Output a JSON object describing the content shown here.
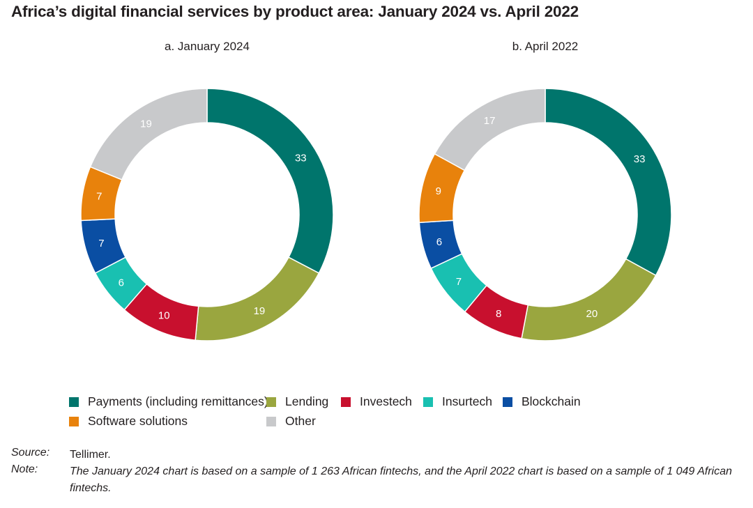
{
  "title": "Africa’s digital financial services by product area: January 2024 vs. April 2022",
  "categories": [
    {
      "name": "Payments (including remittances)",
      "color": "#00756c"
    },
    {
      "name": "Lending",
      "color": "#9aa63f"
    },
    {
      "name": "Investech",
      "color": "#c8102e"
    },
    {
      "name": "Insurtech",
      "color": "#19c0b1"
    },
    {
      "name": "Blockchain",
      "color": "#0a4ea3"
    },
    {
      "name": "Software solutions",
      "color": "#e8820c"
    },
    {
      "name": "Other",
      "color": "#c8c9cb"
    }
  ],
  "chart_data": [
    {
      "type": "pie",
      "title": "a. January 2024",
      "categories": [
        "Payments (including remittances)",
        "Lending",
        "Investech",
        "Insurtech",
        "Blockchain",
        "Software solutions",
        "Other"
      ],
      "values": [
        33,
        19,
        10,
        6,
        7,
        7,
        19
      ]
    },
    {
      "type": "pie",
      "title": "b. April 2022",
      "categories": [
        "Payments (including remittances)",
        "Lending",
        "Investech",
        "Insurtech",
        "Blockchain",
        "Software solutions",
        "Other"
      ],
      "values": [
        33,
        20,
        8,
        7,
        6,
        9,
        17
      ]
    }
  ],
  "source": {
    "label": "Source:",
    "text": "Tellimer."
  },
  "note": {
    "label": "Note:",
    "text": "The January 2024 chart is based on a sample of 1 263 African fintechs, and the April 2022 chart is based on a sample of 1 049 African fintechs."
  }
}
